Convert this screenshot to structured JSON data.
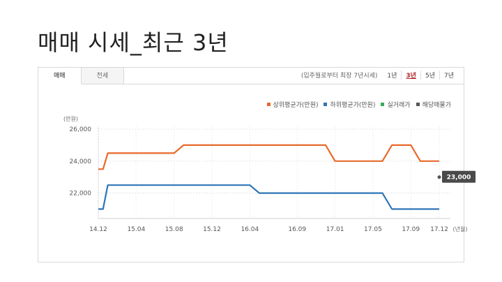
{
  "slide": {
    "title": "매매 시세_최근 3년"
  },
  "tabs": [
    {
      "label": "매매",
      "active": true
    },
    {
      "label": "전세",
      "active": false
    }
  ],
  "period": {
    "note": "(입주월로부터 최장 7년시세)",
    "options": [
      {
        "label": "1년",
        "active": false
      },
      {
        "label": "3년",
        "active": true
      },
      {
        "label": "5년",
        "active": false
      },
      {
        "label": "7년",
        "active": false
      }
    ]
  },
  "chart_data": {
    "type": "line",
    "x": [
      "14.12",
      "15.04",
      "15.08",
      "15.12",
      "16.04",
      "16.09",
      "17.01",
      "17.05",
      "17.09",
      "17.12"
    ],
    "x_unit": "(년월)",
    "y_unit": "(만원)",
    "ylim": [
      20000,
      26000
    ],
    "y_ticks": [
      "26,000",
      "24,000",
      "22,000"
    ],
    "grid": true,
    "legend_position": "top-right",
    "legend": [
      {
        "name": "상위평균가(만원)",
        "color": "#e8692b"
      },
      {
        "name": "하위평균가(만원)",
        "color": "#2e75b6"
      },
      {
        "name": "실거래가",
        "color": "#3aaa5c"
      },
      {
        "name": "해당매물가",
        "color": "#555555"
      }
    ],
    "series": [
      {
        "name": "상위평균가(만원)",
        "color": "#e8692b",
        "points": [
          [
            "14.12",
            23500
          ],
          [
            "14.12.5",
            23500
          ],
          [
            "15.01",
            24500
          ],
          [
            "15.08",
            24500
          ],
          [
            "15.09",
            25000
          ],
          [
            "16.12",
            25000
          ],
          [
            "17.01",
            24000
          ],
          [
            "17.06",
            24000
          ],
          [
            "17.07",
            25000
          ],
          [
            "17.09",
            25000
          ],
          [
            "17.10",
            24000
          ],
          [
            "17.12",
            24000
          ]
        ]
      },
      {
        "name": "하위평균가(만원)",
        "color": "#2e75b6",
        "points": [
          [
            "14.12",
            21000
          ],
          [
            "14.12.5",
            21000
          ],
          [
            "15.01",
            22500
          ],
          [
            "16.04",
            22500
          ],
          [
            "16.05",
            22000
          ],
          [
            "17.06",
            22000
          ],
          [
            "17.07",
            21000
          ],
          [
            "17.12",
            21000
          ]
        ]
      }
    ],
    "annotation": {
      "label": "23,000",
      "value": 23000
    }
  }
}
